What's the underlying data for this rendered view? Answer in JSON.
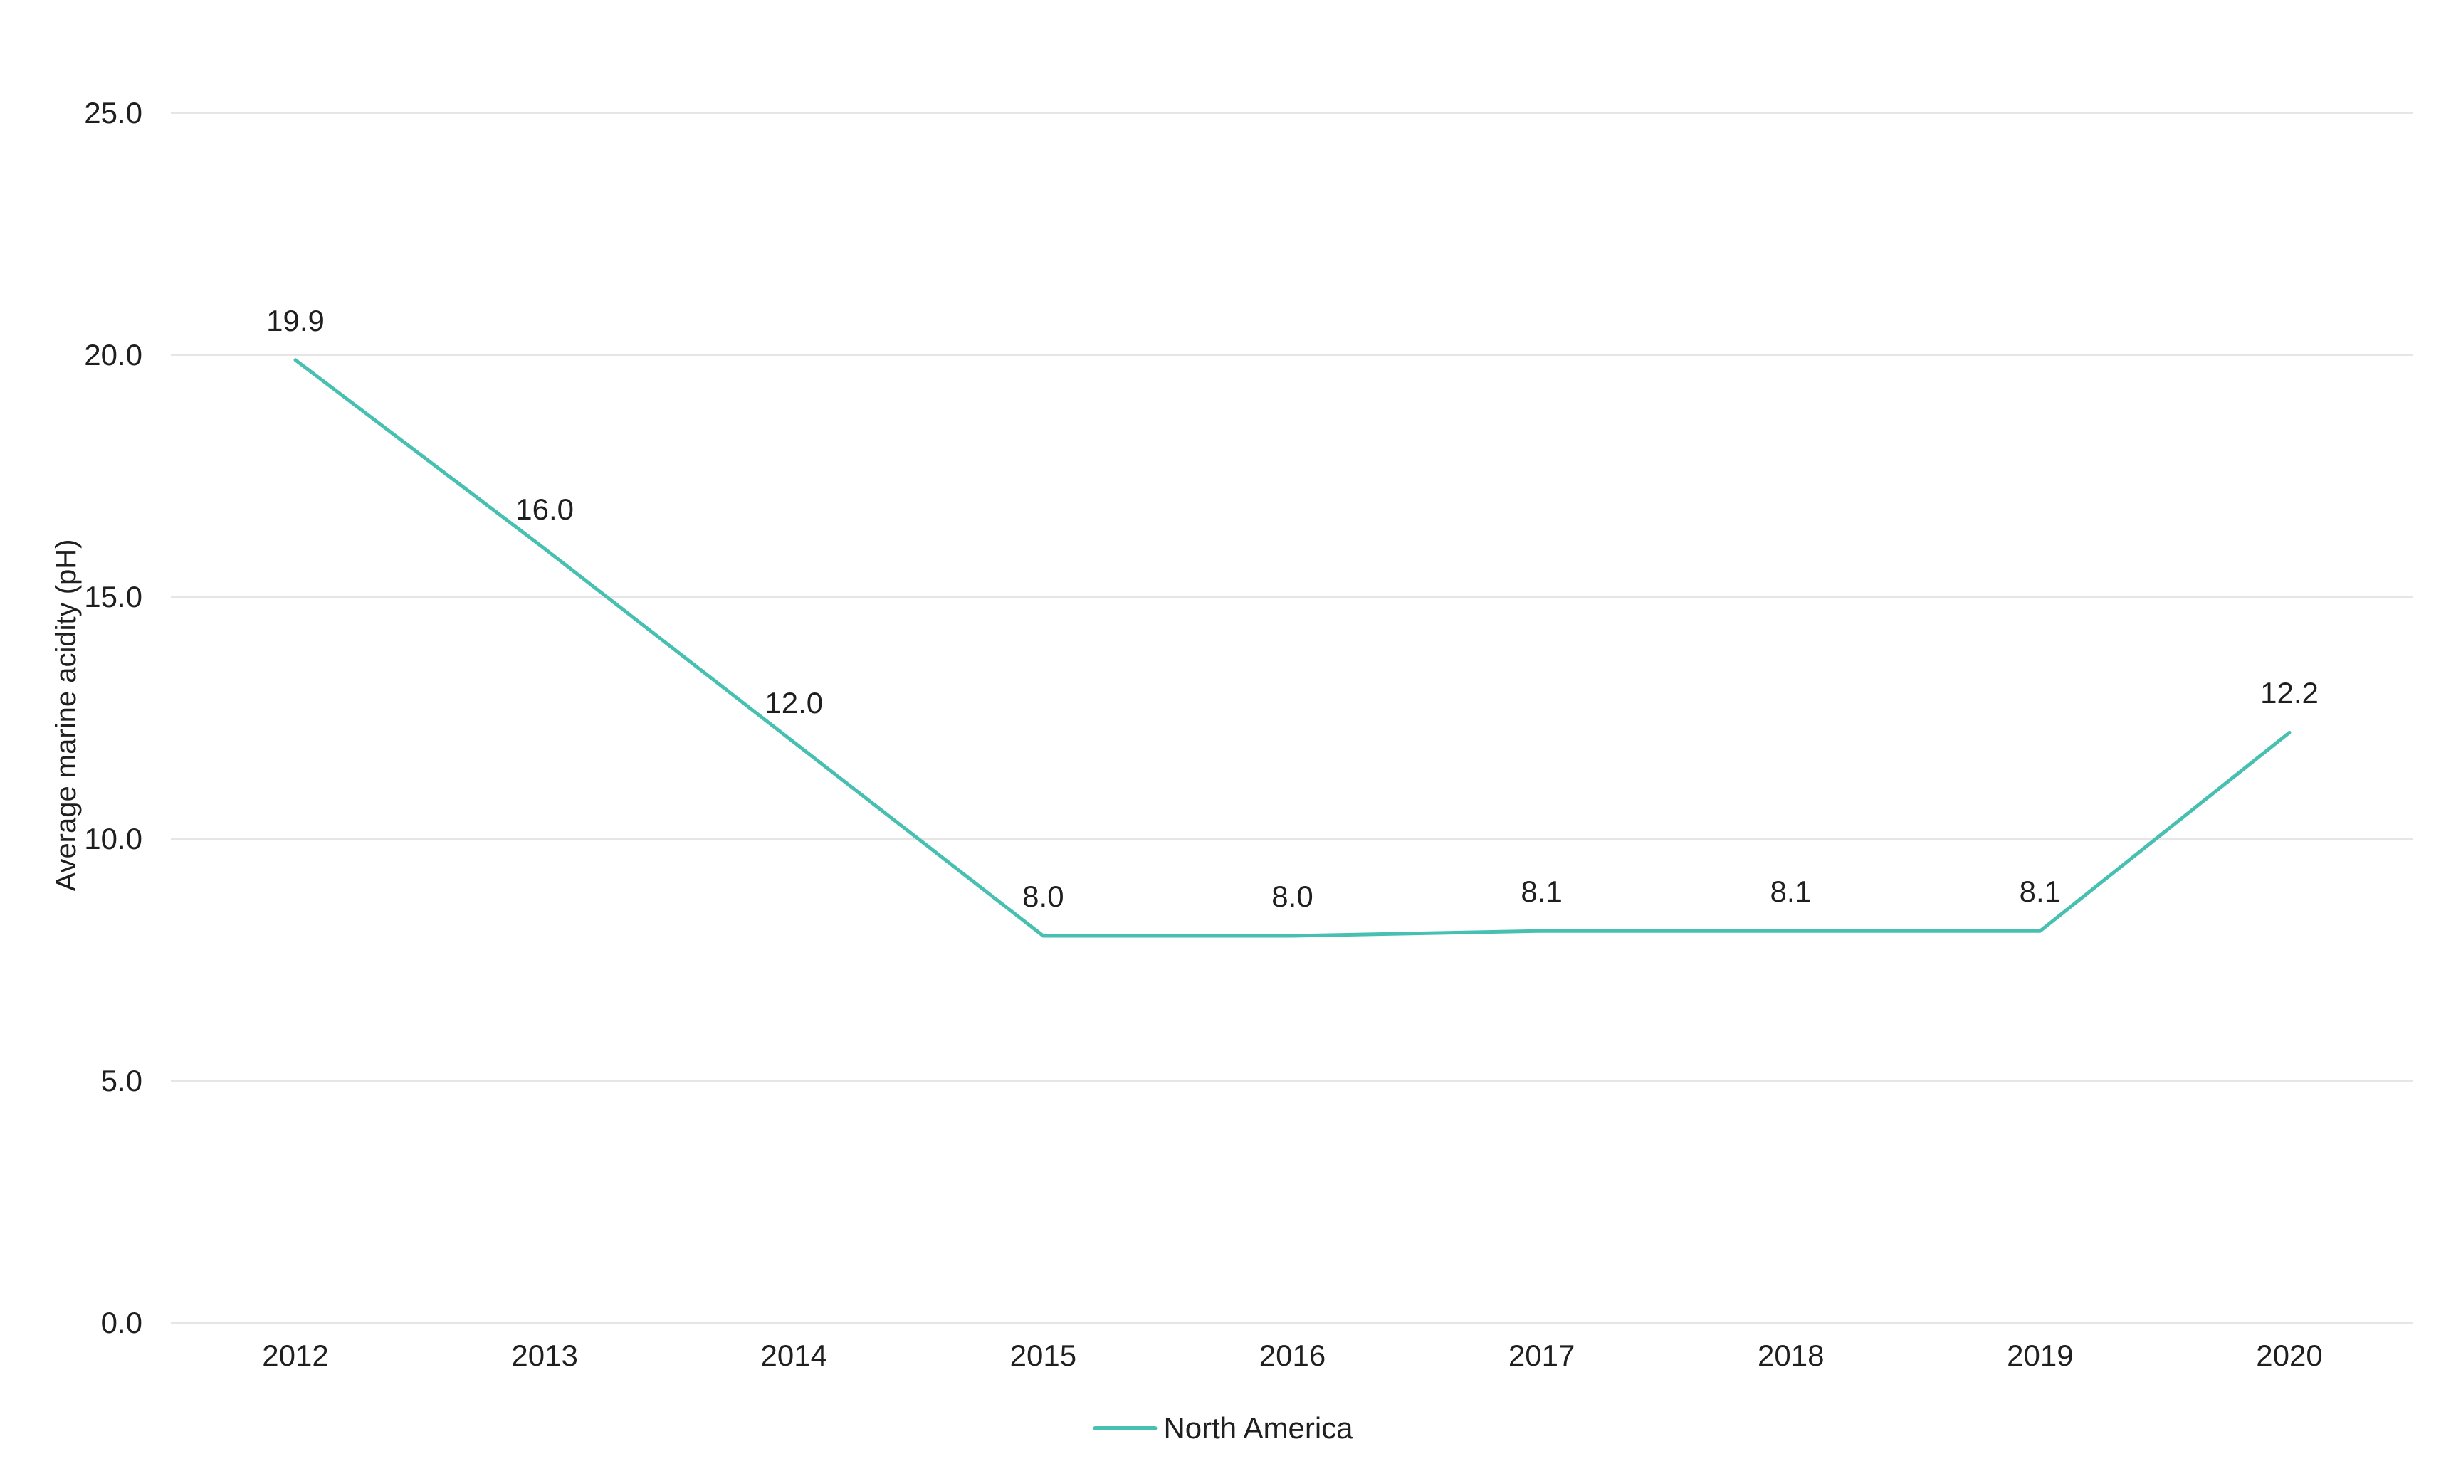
{
  "chart_data": {
    "type": "line",
    "title": "",
    "categories": [
      "2012",
      "2013",
      "2014",
      "2015",
      "2016",
      "2017",
      "2018",
      "2019",
      "2020"
    ],
    "series": [
      {
        "name": "North America",
        "values": [
          19.9,
          16.0,
          12.0,
          8.0,
          8.0,
          8.1,
          8.1,
          8.1,
          12.2
        ],
        "color": "#48c0b1"
      }
    ],
    "data_labels": [
      "19.9",
      "16.0",
      "12.0",
      "8.0",
      "8.0",
      "8.1",
      "8.1",
      "8.1",
      "12.2"
    ],
    "xlabel": "",
    "ylabel": "Average marine acidity (pH)",
    "ylim": [
      0,
      25
    ],
    "ytick_values": [
      0,
      5,
      10,
      15,
      20,
      25
    ],
    "yticks": [
      "0.0",
      "5.0",
      "10.0",
      "15.0",
      "20.0",
      "25.0"
    ],
    "grid": "horizontal gridlines only",
    "legend_position": "bottom-center"
  },
  "axis": {
    "y_title": "Average marine acidity (pH)"
  },
  "legend": {
    "label": "North America"
  },
  "colors": {
    "line": "#48c0b1",
    "grid": "#e6e6e6",
    "text": "#1f1f1f",
    "background": "#ffffff"
  }
}
